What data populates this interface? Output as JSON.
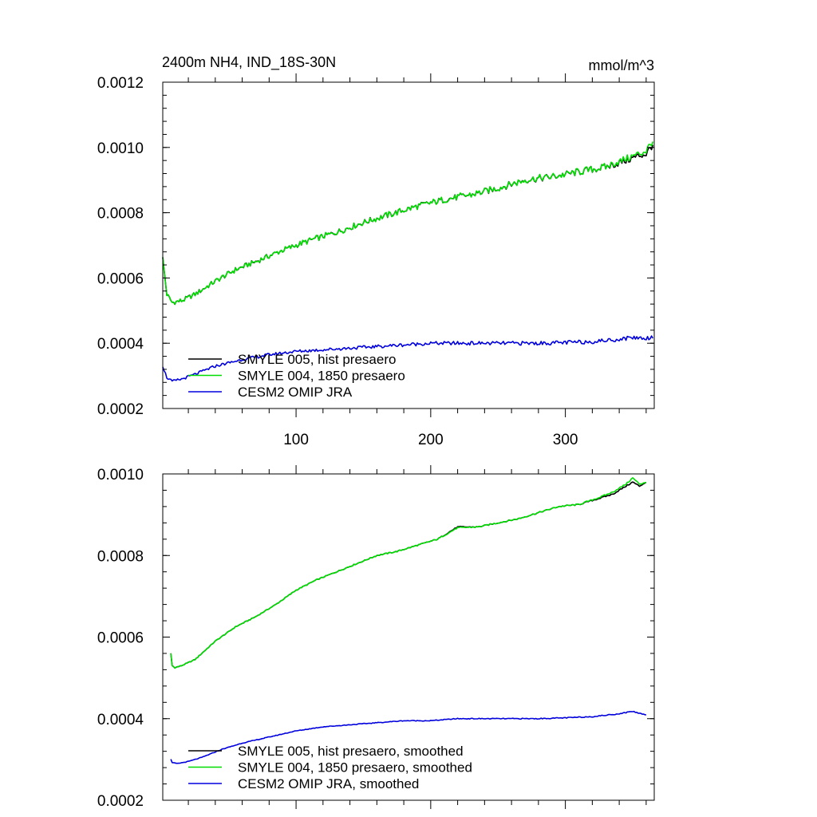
{
  "chart_data": [
    {
      "type": "line",
      "title": "2400m NH4, IND_18S-30N",
      "units": "mmol/m^3",
      "xlim": [
        1,
        366
      ],
      "ylim": [
        0.0002,
        0.0012
      ],
      "xticks": [
        100,
        200,
        300
      ],
      "xtick_labels": [
        "100",
        "200",
        "300"
      ],
      "yticks": [
        0.0002,
        0.0004,
        0.0006,
        0.0008,
        0.001,
        0.0012
      ],
      "ytick_labels": [
        "0.0002",
        "0.0004",
        "0.0006",
        "0.0008",
        "0.0010",
        "0.0012"
      ],
      "legend_position": "bottom-left",
      "series": [
        {
          "name": "SMYLE 005, hist presaero",
          "color": "#000000",
          "x": [
            1,
            4,
            8,
            15,
            25,
            40,
            55,
            70,
            90,
            110,
            130,
            150,
            170,
            190,
            210,
            230,
            250,
            270,
            290,
            310,
            330,
            345,
            355,
            360,
            365
          ],
          "y": [
            0.00066,
            0.00055,
            0.000525,
            0.00053,
            0.00055,
            0.00059,
            0.000625,
            0.00065,
            0.000685,
            0.000715,
            0.00074,
            0.00077,
            0.000795,
            0.00082,
            0.00084,
            0.000855,
            0.000875,
            0.0009,
            0.00091,
            0.000925,
            0.00094,
            0.00096,
            0.000975,
            0.00098,
            0.00101
          ]
        },
        {
          "name": "SMYLE 004, 1850 presaero",
          "color": "#00dd00",
          "x": [
            1,
            4,
            8,
            15,
            25,
            40,
            55,
            70,
            90,
            110,
            130,
            150,
            170,
            190,
            210,
            230,
            250,
            270,
            290,
            310,
            330,
            345,
            355,
            360,
            365
          ],
          "y": [
            0.00066,
            0.00055,
            0.000525,
            0.00053,
            0.00055,
            0.00059,
            0.000625,
            0.00065,
            0.000685,
            0.000715,
            0.00074,
            0.00077,
            0.000795,
            0.00082,
            0.00084,
            0.000855,
            0.000875,
            0.0009,
            0.00091,
            0.000925,
            0.00094,
            0.000965,
            0.00098,
            0.00099,
            0.00102
          ]
        },
        {
          "name": "CESM2 OMIP JRA",
          "color": "#0000dd",
          "x": [
            1,
            4,
            8,
            15,
            25,
            40,
            60,
            80,
            100,
            120,
            140,
            160,
            180,
            200,
            220,
            240,
            260,
            280,
            300,
            320,
            340,
            350,
            360,
            365
          ],
          "y": [
            0.00033,
            0.000295,
            0.000283,
            0.00029,
            0.000305,
            0.00033,
            0.00035,
            0.000365,
            0.000375,
            0.00038,
            0.000385,
            0.00039,
            0.000395,
            0.0004,
            0.0004,
            0.0004,
            0.0004,
            0.0004,
            0.000402,
            0.000405,
            0.000412,
            0.000418,
            0.000415,
            0.00042
          ]
        }
      ]
    },
    {
      "type": "line",
      "title": "",
      "xlim": [
        1,
        366
      ],
      "ylim": [
        0.0002,
        0.001
      ],
      "xticks": [
        100,
        200,
        300
      ],
      "yticks": [
        0.0002,
        0.0004,
        0.0006,
        0.0008,
        0.001
      ],
      "ytick_labels": [
        "0.0002",
        "0.0004",
        "0.0006",
        "0.0008",
        "0.0010"
      ],
      "legend_position": "bottom-left",
      "series": [
        {
          "name": "SMYLE 005, hist presaero, smoothed",
          "color": "#000000",
          "x": [
            7,
            8,
            10,
            15,
            25,
            40,
            55,
            70,
            85,
            100,
            115,
            130,
            145,
            160,
            175,
            190,
            205,
            220,
            235,
            250,
            265,
            280,
            295,
            310,
            325,
            335,
            345,
            350,
            355,
            360
          ],
          "y": [
            0.00056,
            0.00053,
            0.000525,
            0.00053,
            0.000545,
            0.00059,
            0.000625,
            0.00065,
            0.00068,
            0.000715,
            0.00074,
            0.00076,
            0.00078,
            0.0008,
            0.00081,
            0.000825,
            0.00084,
            0.00087,
            0.00087,
            0.00088,
            0.00089,
            0.000905,
            0.00092,
            0.000925,
            0.00094,
            0.00095,
            0.00097,
            0.00098,
            0.00097,
            0.00098
          ]
        },
        {
          "name": "SMYLE 004, 1850 presaero, smoothed",
          "color": "#00dd00",
          "x": [
            7,
            8,
            10,
            15,
            25,
            40,
            55,
            70,
            85,
            100,
            115,
            130,
            145,
            160,
            175,
            190,
            205,
            220,
            235,
            250,
            265,
            280,
            295,
            310,
            325,
            335,
            345,
            350,
            355,
            360
          ],
          "y": [
            0.00056,
            0.00053,
            0.000525,
            0.00053,
            0.000545,
            0.00059,
            0.000625,
            0.00065,
            0.00068,
            0.000715,
            0.00074,
            0.00076,
            0.00078,
            0.0008,
            0.00081,
            0.000825,
            0.00084,
            0.000868,
            0.00087,
            0.00088,
            0.00089,
            0.000905,
            0.00092,
            0.000925,
            0.000942,
            0.000955,
            0.000975,
            0.00099,
            0.000975,
            0.00098
          ]
        },
        {
          "name": "CESM2 OMIP JRA, smoothed",
          "color": "#0000dd",
          "x": [
            7,
            8,
            12,
            20,
            30,
            45,
            60,
            80,
            100,
            120,
            140,
            160,
            180,
            200,
            220,
            240,
            260,
            280,
            300,
            320,
            340,
            350,
            355,
            360
          ],
          "y": [
            0.0003,
            0.000292,
            0.00029,
            0.000295,
            0.000305,
            0.000325,
            0.00034,
            0.000355,
            0.00037,
            0.00038,
            0.000385,
            0.00039,
            0.000395,
            0.000395,
            0.0004,
            0.0004,
            0.0004,
            0.0004,
            0.000402,
            0.000405,
            0.000412,
            0.000418,
            0.000413,
            0.00041
          ]
        }
      ]
    }
  ]
}
